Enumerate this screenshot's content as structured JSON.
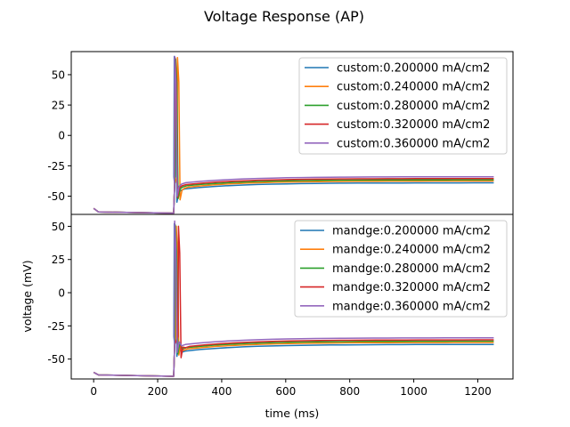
{
  "figure": {
    "title": "Voltage Response (AP)"
  },
  "chart_data": [
    {
      "type": "line",
      "panel": "top",
      "xlabel": "",
      "ylabel": "",
      "xlim": [
        -70,
        1310
      ],
      "ylim": [
        -65,
        69
      ],
      "xticks": [],
      "yticks": [
        -50,
        -25,
        0,
        25,
        50
      ],
      "grid": false,
      "legend_position": "top-right",
      "series": [
        {
          "name": "custom:0.200000 mA/cm2",
          "color": "#1f77b4",
          "spike_t": 252,
          "spike_peak": 65,
          "trough": -55,
          "x": [
            0,
            15,
            250,
            1250
          ],
          "y": [
            -60,
            -63,
            -64,
            -39
          ]
        },
        {
          "name": "custom:0.240000 mA/cm2",
          "color": "#ff7f0e",
          "spike_t": 262,
          "spike_peak": 64,
          "trough": -53,
          "x": [
            0,
            15,
            250,
            1250
          ],
          "y": [
            -60,
            -63,
            -64,
            -37.5
          ]
        },
        {
          "name": "custom:0.280000 mA/cm2",
          "color": "#2ca02c",
          "spike_t": 256,
          "spike_peak": 63,
          "trough": -52,
          "x": [
            0,
            15,
            250,
            1250
          ],
          "y": [
            -60,
            -63,
            -64,
            -36.5
          ]
        },
        {
          "name": "custom:0.320000 mA/cm2",
          "color": "#d62728",
          "spike_t": 254,
          "spike_peak": 64,
          "trough": -51,
          "x": [
            0,
            15,
            250,
            1250
          ],
          "y": [
            -60,
            -63,
            -64,
            -35.5
          ]
        },
        {
          "name": "custom:0.360000 mA/cm2",
          "color": "#9467bd",
          "spike_t": 253,
          "spike_peak": 65,
          "trough": -50,
          "x": [
            0,
            15,
            250,
            1250
          ],
          "y": [
            -60,
            -63,
            -64,
            -34
          ]
        }
      ]
    },
    {
      "type": "line",
      "panel": "bottom",
      "xlabel": "time (ms)",
      "ylabel": "voltage (mV)",
      "xlim": [
        -70,
        1310
      ],
      "ylim": [
        -65,
        59
      ],
      "xticks": [
        0,
        200,
        400,
        600,
        800,
        1000,
        1200
      ],
      "yticks": [
        -50,
        -25,
        0,
        25,
        50
      ],
      "grid": false,
      "legend_position": "top-right",
      "series": [
        {
          "name": "mandge:0.200000 mA/cm2",
          "color": "#1f77b4",
          "spike_t": 252,
          "spike_peak": 52,
          "trough": -48,
          "x": [
            0,
            15,
            250,
            1250
          ],
          "y": [
            -60,
            -62,
            -63,
            -39
          ]
        },
        {
          "name": "mandge:0.240000 mA/cm2",
          "color": "#ff7f0e",
          "spike_t": 258,
          "spike_peak": 50,
          "trough": -47,
          "x": [
            0,
            15,
            250,
            1250
          ],
          "y": [
            -60,
            -62,
            -63,
            -37.5
          ]
        },
        {
          "name": "mandge:0.280000 mA/cm2",
          "color": "#2ca02c",
          "spike_t": 255,
          "spike_peak": 51,
          "trough": -46,
          "x": [
            0,
            15,
            250,
            1250
          ],
          "y": [
            -60,
            -62,
            -63,
            -36.5
          ]
        },
        {
          "name": "mandge:0.320000 mA/cm2",
          "color": "#d62728",
          "spike_t": 265,
          "spike_peak": 50,
          "trough": -49,
          "x": [
            0,
            15,
            250,
            1250
          ],
          "y": [
            -60,
            -62,
            -63,
            -35.5
          ]
        },
        {
          "name": "mandge:0.360000 mA/cm2",
          "color": "#9467bd",
          "spike_t": 253,
          "spike_peak": 54,
          "trough": -45,
          "x": [
            0,
            15,
            250,
            1250
          ],
          "y": [
            -60,
            -62,
            -63,
            -34
          ]
        }
      ]
    }
  ]
}
